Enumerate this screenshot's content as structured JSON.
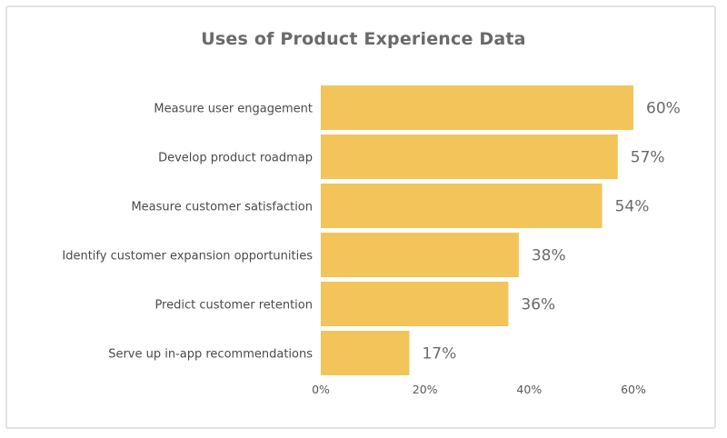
{
  "chart_data": {
    "type": "bar",
    "orientation": "horizontal",
    "title": "Uses of Product Experience Data",
    "categories": [
      "Measure user engagement",
      "Develop product roadmap",
      "Measure customer satisfaction",
      "Identify customer expansion opportunities",
      "Predict customer retention",
      "Serve up in-app recommendations"
    ],
    "values": [
      60,
      57,
      54,
      38,
      36,
      17
    ],
    "value_labels": [
      "60%",
      "57%",
      "54%",
      "38%",
      "36%",
      "17%"
    ],
    "xlim": [
      0,
      60
    ],
    "xticks": [
      0,
      20,
      40,
      60
    ],
    "xtick_labels": [
      "0%",
      "20%",
      "40%",
      "60%"
    ],
    "bar_color": "#f2c45a",
    "grid": false,
    "legend": "none"
  }
}
